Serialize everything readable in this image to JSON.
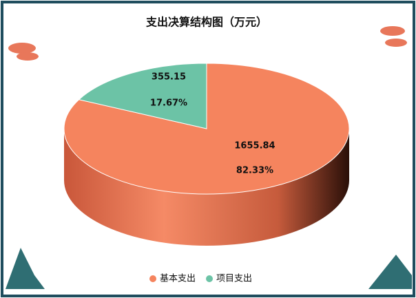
{
  "chart_data": {
    "type": "pie",
    "title": "支出决算结构图（万元）",
    "categories": [
      "基本支出",
      "项目支出"
    ],
    "values": [
      1655.84,
      355.15
    ],
    "percentages": [
      82.33,
      17.67
    ],
    "percentage_labels": [
      "82.33%",
      "17.67%"
    ],
    "colors": [
      "#f5845e",
      "#6cc3a6"
    ],
    "legend": "bottom"
  }
}
